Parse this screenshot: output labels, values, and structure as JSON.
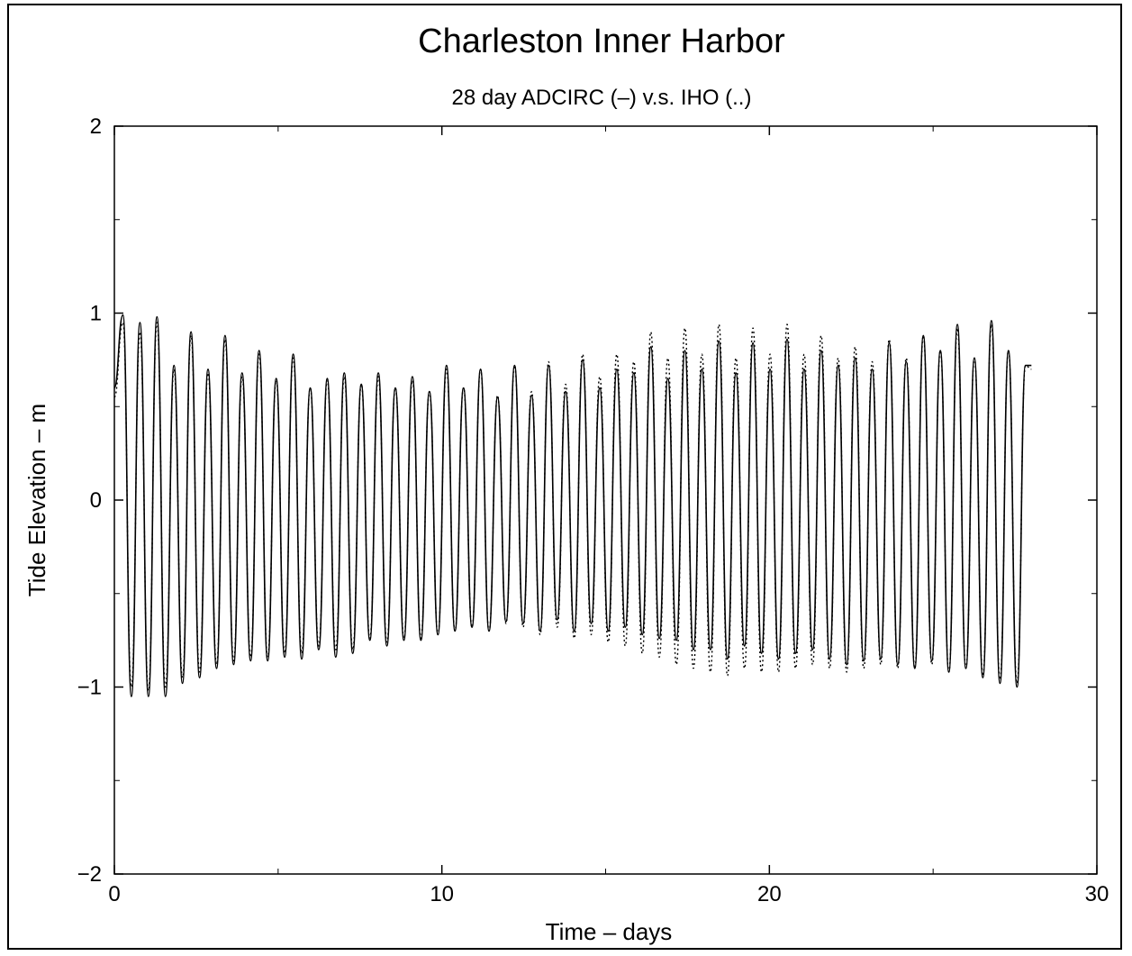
{
  "chart_data": {
    "type": "line",
    "title": "Charleston Inner Harbor",
    "subtitle": "28 day ADCIRC (–) v.s. IHO (..)",
    "xlabel": "Time – days",
    "ylabel": "Tide Elevation – m",
    "xlim": [
      0,
      30
    ],
    "ylim": [
      -2,
      2
    ],
    "xticks": [
      0,
      10,
      20,
      30
    ],
    "yticks": [
      -2,
      -1,
      0,
      1,
      2
    ],
    "xtick_labels": [
      "0",
      "10",
      "20",
      "30"
    ],
    "ytick_labels": [
      "−2",
      "−1",
      "0",
      "1",
      "2"
    ],
    "grid": false,
    "legend": "none",
    "line_color": "#000000",
    "series": [
      {
        "style": "solid",
        "x": [
          0.0,
          0.26,
          0.52,
          0.78,
          1.04,
          1.3,
          1.56,
          1.82,
          2.08,
          2.34,
          2.6,
          2.86,
          3.12,
          3.38,
          3.64,
          3.9,
          4.16,
          4.42,
          4.68,
          4.94,
          5.2,
          5.46,
          5.72,
          5.98,
          6.24,
          6.5,
          6.76,
          7.02,
          7.28,
          7.54,
          7.8,
          8.06,
          8.32,
          8.58,
          8.84,
          9.1,
          9.36,
          9.62,
          9.88,
          10.14,
          10.4,
          10.66,
          10.92,
          11.18,
          11.44,
          11.7,
          11.96,
          12.22,
          12.48,
          12.74,
          13.0,
          13.26,
          13.52,
          13.78,
          14.04,
          14.3,
          14.56,
          14.82,
          15.08,
          15.34,
          15.6,
          15.86,
          16.12,
          16.38,
          16.64,
          16.9,
          17.16,
          17.42,
          17.68,
          17.94,
          18.2,
          18.46,
          18.72,
          18.98,
          19.24,
          19.5,
          19.76,
          20.02,
          20.28,
          20.54,
          20.8,
          21.06,
          21.32,
          21.58,
          21.84,
          22.1,
          22.36,
          22.62,
          22.88,
          23.14,
          23.4,
          23.66,
          23.92,
          24.18,
          24.44,
          24.7,
          24.96,
          25.22,
          25.48,
          25.74,
          26.0,
          26.26,
          26.52,
          26.78,
          27.04,
          27.3,
          27.56,
          27.82,
          28.0
        ],
        "y": [
          0.6,
          0.99,
          -1.05,
          0.95,
          -1.05,
          0.98,
          -1.05,
          0.72,
          -0.98,
          0.9,
          -0.95,
          0.7,
          -0.9,
          0.88,
          -0.88,
          0.68,
          -0.86,
          0.8,
          -0.86,
          0.65,
          -0.84,
          0.78,
          -0.85,
          0.6,
          -0.8,
          0.65,
          -0.84,
          0.68,
          -0.82,
          0.62,
          -0.75,
          0.68,
          -0.78,
          0.6,
          -0.75,
          0.66,
          -0.75,
          0.58,
          -0.72,
          0.72,
          -0.7,
          0.6,
          -0.68,
          0.7,
          -0.7,
          0.55,
          -0.65,
          0.72,
          -0.66,
          0.56,
          -0.7,
          0.72,
          -0.64,
          0.58,
          -0.7,
          0.75,
          -0.66,
          0.6,
          -0.7,
          0.7,
          -0.68,
          0.68,
          -0.72,
          0.82,
          -0.74,
          0.65,
          -0.75,
          0.8,
          -0.8,
          0.7,
          -0.8,
          0.85,
          -0.85,
          0.68,
          -0.78,
          0.84,
          -0.82,
          0.7,
          -0.85,
          0.86,
          -0.82,
          0.7,
          -0.8,
          0.8,
          -0.85,
          0.72,
          -0.88,
          0.76,
          -0.86,
          0.7,
          -0.85,
          0.84,
          -0.88,
          0.74,
          -0.9,
          0.88,
          -0.86,
          0.8,
          -0.92,
          0.94,
          -0.9,
          0.76,
          -0.95,
          0.96,
          -0.98,
          0.8,
          -1.0,
          0.72,
          0.72
        ]
      },
      {
        "style": "dotted",
        "x": [
          0.0,
          0.26,
          0.52,
          0.78,
          1.04,
          1.3,
          1.56,
          1.82,
          2.08,
          2.34,
          2.6,
          2.86,
          3.12,
          3.38,
          3.64,
          3.9,
          4.16,
          4.42,
          4.68,
          4.94,
          5.2,
          5.46,
          5.72,
          5.98,
          6.24,
          6.5,
          6.76,
          7.02,
          7.28,
          7.54,
          7.8,
          8.06,
          8.32,
          8.58,
          8.84,
          9.1,
          9.36,
          9.62,
          9.88,
          10.14,
          10.4,
          10.66,
          10.92,
          11.18,
          11.44,
          11.7,
          11.96,
          12.22,
          12.48,
          12.74,
          13.0,
          13.26,
          13.52,
          13.78,
          14.04,
          14.3,
          14.56,
          14.82,
          15.08,
          15.34,
          15.6,
          15.86,
          16.12,
          16.38,
          16.64,
          16.9,
          17.16,
          17.42,
          17.68,
          17.94,
          18.2,
          18.46,
          18.72,
          18.98,
          19.24,
          19.5,
          19.76,
          20.02,
          20.28,
          20.54,
          20.8,
          21.06,
          21.32,
          21.58,
          21.84,
          22.1,
          22.36,
          22.62,
          22.88,
          23.14,
          23.4,
          23.66,
          23.92,
          24.18,
          24.44,
          24.7,
          24.96,
          25.22,
          25.48,
          25.74,
          26.0,
          26.26,
          26.52,
          26.78,
          27.04,
          27.3,
          27.56,
          27.82,
          28.0
        ],
        "y": [
          0.55,
          0.95,
          -1.0,
          0.9,
          -1.02,
          0.95,
          -1.0,
          0.7,
          -0.95,
          0.88,
          -0.92,
          0.68,
          -0.88,
          0.86,
          -0.86,
          0.66,
          -0.84,
          0.78,
          -0.84,
          0.64,
          -0.82,
          0.76,
          -0.82,
          0.6,
          -0.78,
          0.64,
          -0.8,
          0.66,
          -0.8,
          0.62,
          -0.74,
          0.66,
          -0.76,
          0.6,
          -0.74,
          0.64,
          -0.74,
          0.58,
          -0.72,
          0.7,
          -0.7,
          0.6,
          -0.68,
          0.7,
          -0.7,
          0.56,
          -0.66,
          0.72,
          -0.68,
          0.58,
          -0.72,
          0.74,
          -0.68,
          0.62,
          -0.74,
          0.78,
          -0.72,
          0.66,
          -0.76,
          0.78,
          -0.78,
          0.74,
          -0.82,
          0.9,
          -0.84,
          0.76,
          -0.88,
          0.92,
          -0.9,
          0.78,
          -0.92,
          0.94,
          -0.94,
          0.76,
          -0.9,
          0.92,
          -0.92,
          0.78,
          -0.92,
          0.94,
          -0.9,
          0.78,
          -0.88,
          0.88,
          -0.9,
          0.76,
          -0.92,
          0.82,
          -0.9,
          0.74,
          -0.88,
          0.86,
          -0.9,
          0.76,
          -0.9,
          0.88,
          -0.88,
          0.8,
          -0.92,
          0.92,
          -0.9,
          0.76,
          -0.94,
          0.94,
          -0.96,
          0.8,
          -0.98,
          0.72,
          0.7
        ]
      }
    ]
  }
}
